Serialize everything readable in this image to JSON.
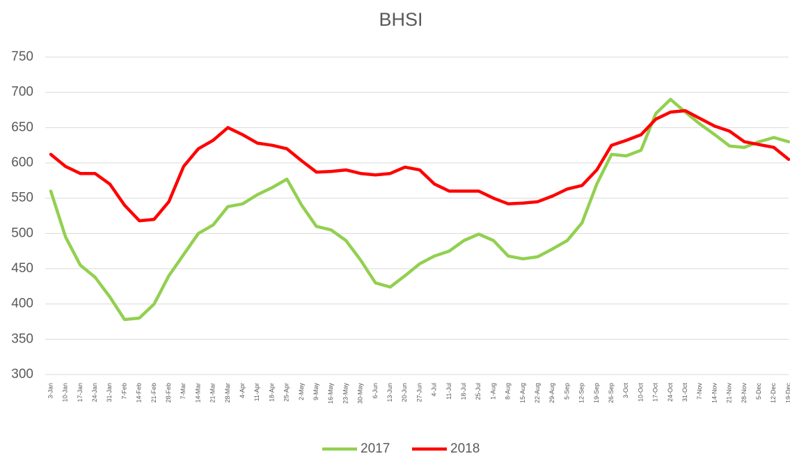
{
  "chart_data": {
    "type": "line",
    "title": "BHSI",
    "categories": [
      "3-Jan",
      "10-Jan",
      "17-Jan",
      "24-Jan",
      "31-Jan",
      "7-Feb",
      "14-Feb",
      "21-Feb",
      "28-Feb",
      "7-Mar",
      "14-Mar",
      "21-Mar",
      "28-Mar",
      "4-Apr",
      "11-Apr",
      "18-Apr",
      "25-Apr",
      "2-May",
      "9-May",
      "16-May",
      "23-May",
      "30-May",
      "6-Jun",
      "13-Jun",
      "20-Jun",
      "27-Jun",
      "4-Jul",
      "11-Jul",
      "18-Jul",
      "25-Jul",
      "1-Aug",
      "8-Aug",
      "15-Aug",
      "22-Aug",
      "29-Aug",
      "5-Sep",
      "12-Sep",
      "19-Sep",
      "26-Sep",
      "3-Oct",
      "10-Oct",
      "17-Oct",
      "24-Oct",
      "31-Oct",
      "7-Nov",
      "14-Nov",
      "21-Nov",
      "28-Nov",
      "5-Dec",
      "12-Dec",
      "19-Dec"
    ],
    "series": [
      {
        "name": "2017",
        "color": "#92d050",
        "values": [
          560,
          495,
          455,
          438,
          410,
          378,
          380,
          400,
          440,
          470,
          500,
          512,
          538,
          542,
          555,
          565,
          577,
          540,
          510,
          505,
          490,
          462,
          430,
          424,
          440,
          457,
          468,
          475,
          490,
          499,
          490,
          468,
          464,
          467,
          478,
          490,
          515,
          570,
          612,
          610,
          618,
          670,
          690,
          672,
          655,
          640,
          624,
          622,
          630,
          636,
          630
        ]
      },
      {
        "name": "2018",
        "color": "#ff0000",
        "values": [
          612,
          595,
          585,
          585,
          570,
          540,
          518,
          520,
          545,
          595,
          620,
          632,
          650,
          640,
          628,
          625,
          620,
          603,
          587,
          588,
          590,
          585,
          583,
          585,
          594,
          590,
          570,
          560,
          560,
          560,
          550,
          542,
          543,
          545,
          553,
          563,
          568,
          590,
          625,
          632,
          640,
          662,
          672,
          674,
          663,
          652,
          645,
          630,
          626,
          622,
          605
        ]
      }
    ],
    "ylim": [
      300,
      750
    ],
    "yticks": [
      300,
      350,
      400,
      450,
      500,
      550,
      600,
      650,
      700,
      750
    ],
    "grid": true
  }
}
